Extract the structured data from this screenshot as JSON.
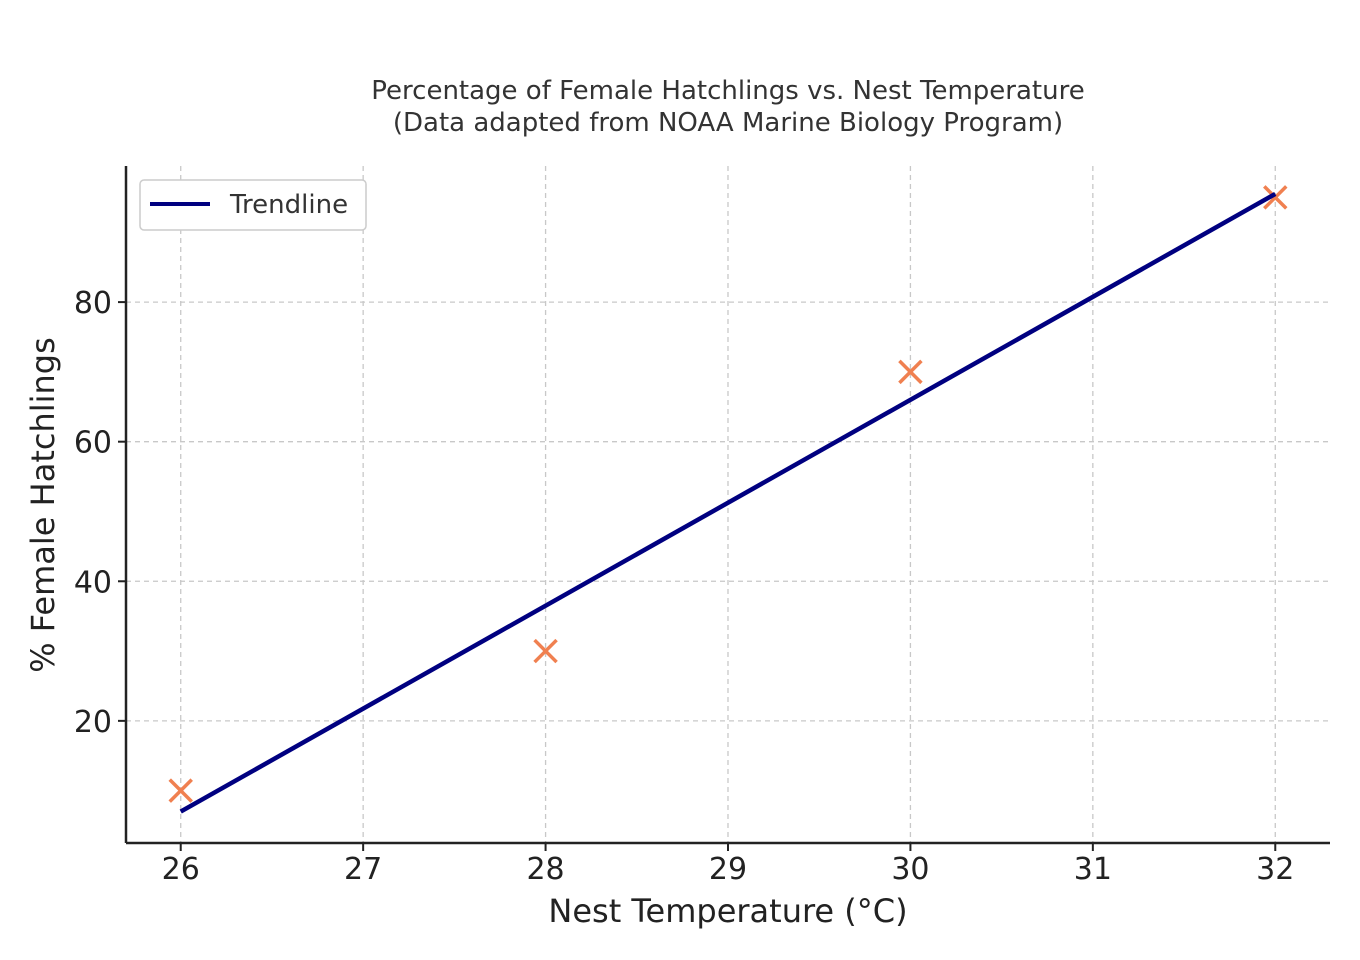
{
  "chart_data": {
    "type": "scatter",
    "title": "Percentage of Female Hatchlings vs. Nest Temperature",
    "subtitle": "(Data adapted from NOAA Marine Biology Program)",
    "xlabel": "Nest Temperature (°C)",
    "ylabel": "% Female Hatchlings",
    "xlim": [
      25.7,
      32.3
    ],
    "ylim": [
      2.5,
      99.5
    ],
    "xticks": [
      26,
      27,
      28,
      29,
      30,
      31,
      32
    ],
    "yticks": [
      20,
      40,
      60,
      80
    ],
    "grid": true,
    "legend_position": "top-left",
    "series": [
      {
        "kind": "scatter",
        "marker": "x",
        "color": "#f08050",
        "x": [
          26,
          28,
          30,
          32
        ],
        "y": [
          10,
          30,
          70,
          95
        ]
      },
      {
        "name": "Trendline",
        "kind": "line",
        "color": "#000080",
        "x": [
          26,
          32
        ],
        "y": [
          7,
          95.5
        ]
      }
    ]
  }
}
